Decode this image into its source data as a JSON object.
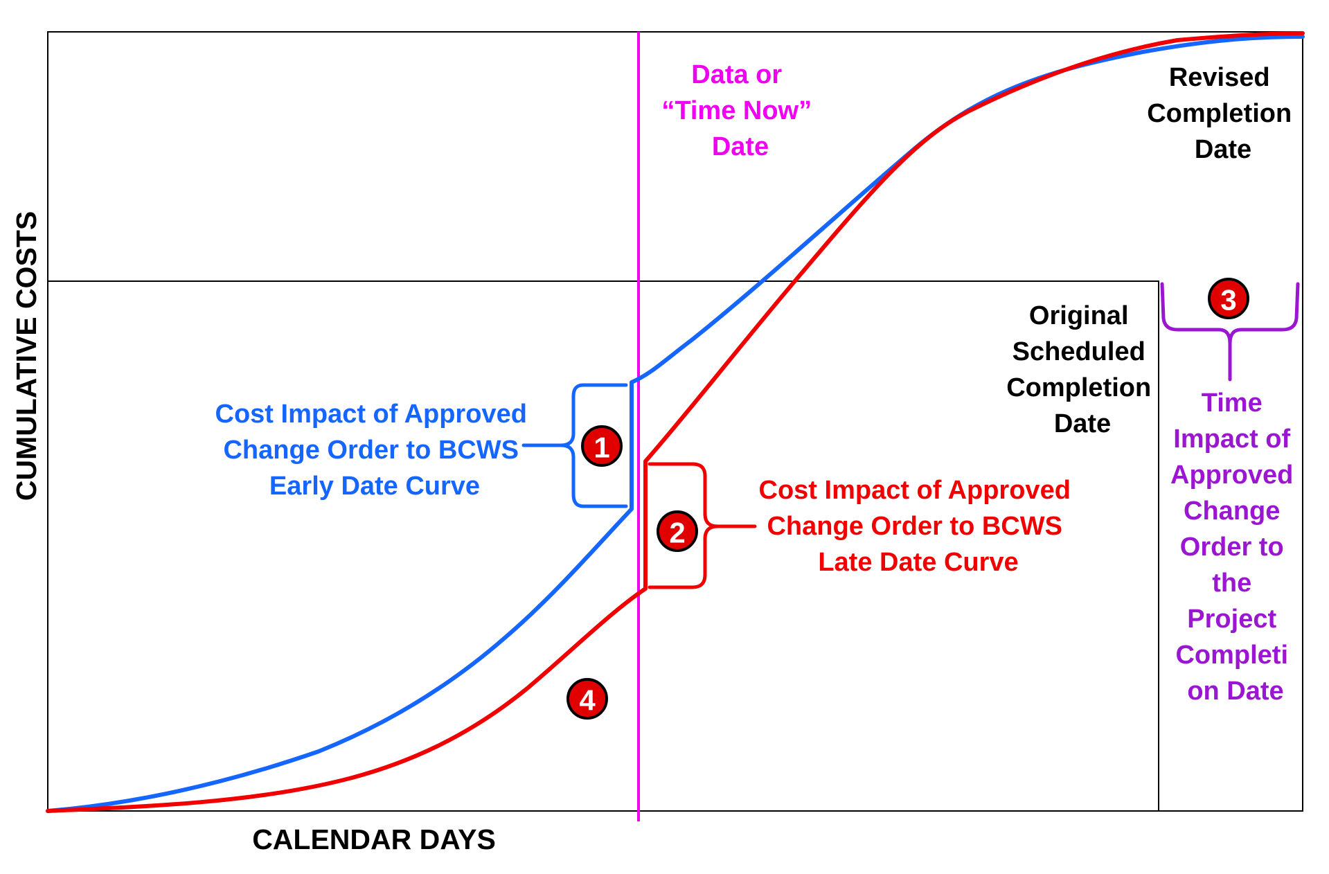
{
  "axes": {
    "x_label": "CALENDAR DAYS",
    "y_label": "CUMULATIVE COSTS"
  },
  "labels": {
    "data_date": [
      "Data or",
      "“Time Now”",
      "Date"
    ],
    "revised_completion": [
      "Revised",
      "Completion",
      "Date"
    ],
    "original_completion": [
      "Original",
      "Scheduled",
      "Completion",
      "Date"
    ],
    "cost_impact_early": [
      "Cost Impact of Approved",
      "Change Order to BCWS",
      "Early Date Curve"
    ],
    "cost_impact_late": [
      "Cost Impact of Approved",
      "Change Order to BCWS",
      "Late Date Curve"
    ],
    "time_impact": [
      "Time",
      "Impact of",
      "Approved",
      "Change",
      "Order to",
      "the",
      "Project",
      "Completi",
      "on Date"
    ]
  },
  "markers": {
    "m1": "1",
    "m2": "2",
    "m3": "3",
    "m4": "4"
  },
  "colors": {
    "early_curve": "#1565FF",
    "late_curve": "#F00000",
    "data_date_line": "#F000F0",
    "time_impact": "#9B16D0",
    "marker_fill": "#E00000",
    "frame": "#000000"
  }
}
